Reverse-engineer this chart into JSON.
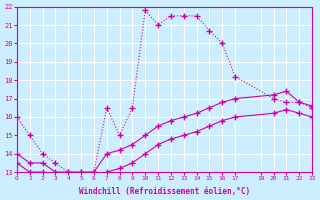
{
  "background_color": "#cceeff",
  "grid_color": "#ffffff",
  "line_color": "#cc00aa",
  "xlim": [
    0,
    23
  ],
  "ylim": [
    13,
    22
  ],
  "xticks": [
    0,
    1,
    2,
    3,
    4,
    5,
    6,
    7,
    8,
    9,
    10,
    11,
    12,
    13,
    14,
    15,
    16,
    17,
    19,
    20,
    21,
    22,
    23
  ],
  "yticks": [
    13,
    14,
    15,
    16,
    17,
    18,
    19,
    20,
    21,
    22
  ],
  "xlabel": "Windchill (Refroidissement éolien,°C)",
  "series1_x": [
    0,
    1,
    2,
    3,
    4,
    5,
    6,
    7,
    8,
    9,
    10,
    11,
    12,
    13,
    14,
    15,
    16,
    17,
    20,
    21,
    22,
    23
  ],
  "series1_y": [
    16,
    15,
    14,
    13.5,
    13,
    13,
    13,
    16.5,
    15,
    16.5,
    21.8,
    21,
    21.5,
    21.5,
    21.5,
    20.7,
    20,
    18.2,
    17,
    16.8,
    16.8,
    16.5
  ],
  "series2_x": [
    0,
    1,
    2,
    3,
    4,
    5,
    6,
    7,
    8,
    9,
    10,
    11,
    12,
    13,
    14,
    15,
    16,
    17,
    20,
    21,
    22,
    23
  ],
  "series2_y": [
    14,
    13.5,
    13.5,
    13,
    13,
    13,
    13,
    14,
    14.2,
    14.5,
    15,
    15.5,
    15.8,
    16,
    16.2,
    16.5,
    16.8,
    17,
    17.2,
    17.4,
    16.8,
    16.6
  ],
  "series3_x": [
    0,
    1,
    2,
    3,
    4,
    5,
    6,
    7,
    8,
    9,
    10,
    11,
    12,
    13,
    14,
    15,
    16,
    17,
    20,
    21,
    22,
    23
  ],
  "series3_y": [
    13.5,
    13,
    13,
    12.8,
    12.8,
    12.8,
    12.8,
    13,
    13.2,
    13.5,
    14,
    14.5,
    14.8,
    15,
    15.2,
    15.5,
    15.8,
    16,
    16.2,
    16.4,
    16.2,
    16.0
  ]
}
